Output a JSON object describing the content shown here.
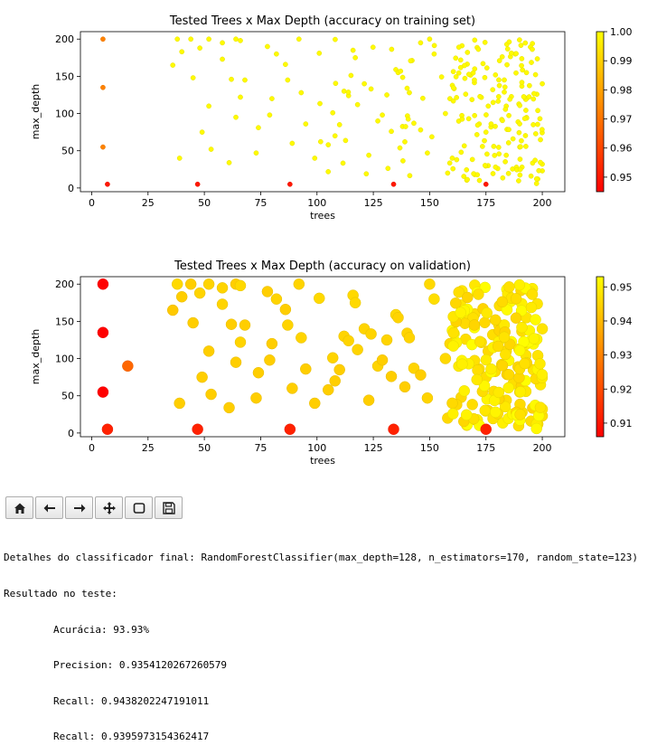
{
  "chart_data": [
    {
      "type": "scatter",
      "title": "Tested Trees x Max Depth (accuracy on training set)",
      "xlabel": "trees",
      "ylabel": "max_depth",
      "xlim": [
        -5,
        210
      ],
      "ylim": [
        -5,
        210
      ],
      "xticks": [
        0,
        25,
        50,
        75,
        100,
        125,
        150,
        175,
        200
      ],
      "yticks": [
        0,
        50,
        100,
        150,
        200
      ],
      "grid": false,
      "point_size": "uniform",
      "colorbar": {
        "cmap": "autumn",
        "min": 0.945,
        "max": 1.0,
        "ticks": [
          "0.95",
          "0.96",
          "0.97",
          "0.98",
          "0.99",
          "1.00"
        ]
      },
      "highlights": [
        {
          "x": 5,
          "y": 200,
          "value": 0.973
        },
        {
          "x": 5,
          "y": 135,
          "value": 0.973
        },
        {
          "x": 5,
          "y": 55,
          "value": 0.973
        },
        {
          "x": 7,
          "y": 5,
          "value": 0.95
        },
        {
          "x": 47,
          "y": 5,
          "value": 0.95
        },
        {
          "x": 88,
          "y": 5,
          "value": 0.95
        },
        {
          "x": 134,
          "y": 5,
          "value": 0.95
        },
        {
          "x": 175,
          "y": 5,
          "value": 0.95
        }
      ]
    },
    {
      "type": "scatter",
      "title": "Tested Trees x Max Depth (accuracy on validation)",
      "xlabel": "trees",
      "ylabel": "max_depth",
      "xlim": [
        -5,
        210
      ],
      "ylim": [
        -5,
        210
      ],
      "xticks": [
        0,
        25,
        50,
        75,
        100,
        125,
        150,
        175,
        200
      ],
      "yticks": [
        0,
        50,
        100,
        150,
        200
      ],
      "grid": false,
      "point_size": "uniform",
      "colorbar": {
        "cmap": "autumn",
        "min": 0.906,
        "max": 0.953,
        "ticks": [
          "0.91",
          "0.92",
          "0.93",
          "0.94",
          "0.95"
        ]
      },
      "highlights": [
        {
          "x": 5,
          "y": 200,
          "value": 0.906
        },
        {
          "x": 5,
          "y": 135,
          "value": 0.906
        },
        {
          "x": 5,
          "y": 55,
          "value": 0.906
        },
        {
          "x": 7,
          "y": 5,
          "value": 0.912
        },
        {
          "x": 47,
          "y": 5,
          "value": 0.912
        },
        {
          "x": 88,
          "y": 5,
          "value": 0.912
        },
        {
          "x": 134,
          "y": 5,
          "value": 0.912
        },
        {
          "x": 175,
          "y": 5,
          "value": 0.912
        },
        {
          "x": 16,
          "y": 90,
          "value": 0.925
        }
      ],
      "points": [
        [
          38,
          200,
          0.946
        ],
        [
          44,
          200,
          0.944
        ],
        [
          52,
          200,
          0.945
        ],
        [
          64,
          200,
          0.944
        ],
        [
          92,
          200,
          0.945
        ],
        [
          36,
          165,
          0.943
        ],
        [
          40,
          183,
          0.944
        ],
        [
          48,
          188,
          0.945
        ],
        [
          58,
          195,
          0.945
        ],
        [
          66,
          198,
          0.946
        ],
        [
          45,
          148,
          0.944
        ],
        [
          58,
          173,
          0.945
        ],
        [
          62,
          146,
          0.944
        ],
        [
          68,
          145,
          0.944
        ],
        [
          52,
          110,
          0.944
        ],
        [
          49,
          75,
          0.944
        ],
        [
          39,
          40,
          0.944
        ],
        [
          53,
          52,
          0.944
        ],
        [
          61,
          34,
          0.944
        ],
        [
          64,
          95,
          0.944
        ],
        [
          66,
          122,
          0.945
        ],
        [
          73,
          47,
          0.944
        ],
        [
          74,
          81,
          0.944
        ],
        [
          79,
          98,
          0.944
        ],
        [
          80,
          120,
          0.944
        ],
        [
          78,
          190,
          0.944
        ],
        [
          82,
          180,
          0.945
        ],
        [
          86,
          166,
          0.944
        ],
        [
          87,
          145,
          0.945
        ],
        [
          89,
          60,
          0.944
        ],
        [
          93,
          128,
          0.945
        ],
        [
          95,
          86,
          0.944
        ],
        [
          99,
          40,
          0.944
        ],
        [
          101,
          181,
          0.946
        ],
        [
          107,
          101,
          0.945
        ],
        [
          108,
          70,
          0.944
        ],
        [
          112,
          130,
          0.945
        ],
        [
          114,
          124,
          0.945
        ],
        [
          116,
          185,
          0.946
        ],
        [
          117,
          175,
          0.946
        ],
        [
          121,
          140,
          0.945
        ],
        [
          124,
          133,
          0.945
        ],
        [
          127,
          90,
          0.945
        ],
        [
          129,
          98,
          0.944
        ],
        [
          131,
          125,
          0.945
        ],
        [
          133,
          76,
          0.944
        ],
        [
          135,
          159,
          0.946
        ],
        [
          136,
          155,
          0.945
        ],
        [
          140,
          134,
          0.945
        ],
        [
          143,
          87,
          0.945
        ],
        [
          146,
          78,
          0.944
        ],
        [
          149,
          47,
          0.945
        ],
        [
          150,
          200,
          0.946
        ],
        [
          152,
          180,
          0.947
        ],
        [
          157,
          100,
          0.946
        ],
        [
          159,
          120,
          0.946
        ],
        [
          164,
          48,
          0.946
        ],
        [
          166,
          126,
          0.947
        ],
        [
          168,
          152,
          0.947
        ],
        [
          170,
          160,
          0.947
        ],
        [
          172,
          86,
          0.947
        ],
        [
          175,
          75,
          0.947
        ],
        [
          178,
          132,
          0.947
        ],
        [
          181,
          171,
          0.947
        ],
        [
          184,
          110,
          0.947
        ],
        [
          187,
          66,
          0.947
        ],
        [
          190,
          55,
          0.947
        ],
        [
          193,
          120,
          0.948
        ],
        [
          196,
          85,
          0.948
        ],
        [
          198,
          104,
          0.948
        ],
        [
          200,
          140,
          0.948
        ],
        [
          176,
          110,
          0.946
        ],
        [
          182,
          92,
          0.946
        ],
        [
          188,
          180,
          0.946
        ],
        [
          105,
          58,
          0.944
        ],
        [
          110,
          85,
          0.944
        ],
        [
          118,
          112,
          0.945
        ],
        [
          123,
          44,
          0.944
        ],
        [
          139,
          62,
          0.944
        ],
        [
          141,
          128,
          0.945
        ],
        [
          158,
          20,
          0.946
        ],
        [
          162,
          38,
          0.946
        ],
        [
          170,
          18,
          0.946
        ],
        [
          176,
          30,
          0.946
        ],
        [
          184,
          44,
          0.947
        ],
        [
          191,
          28,
          0.947
        ],
        [
          195,
          16,
          0.947
        ],
        [
          198,
          12,
          0.947
        ],
        [
          200,
          23,
          0.947
        ],
        [
          200,
          32,
          0.948
        ]
      ]
    }
  ],
  "toolbar": {
    "buttons": [
      {
        "name": "home-button",
        "icon": "home-icon"
      },
      {
        "name": "back-button",
        "icon": "arrow-left-icon"
      },
      {
        "name": "forward-button",
        "icon": "arrow-right-icon"
      },
      {
        "name": "pan-button",
        "icon": "move-icon"
      },
      {
        "name": "zoom-button",
        "icon": "zoom-rect-icon"
      },
      {
        "name": "save-button",
        "icon": "save-icon"
      }
    ]
  },
  "output": {
    "line1": "Detalhes do classificador final: RandomForestClassifier(max_depth=128, n_estimators=170, random_state=123)",
    "line2": "Resultado no teste:",
    "acc": "Acurácia: 93.93%",
    "precision": "Precision: 0.9354120267260579",
    "recall1": "Recall: 0.9438202247191011",
    "recall2": "Recall: 0.9395973154362417"
  }
}
